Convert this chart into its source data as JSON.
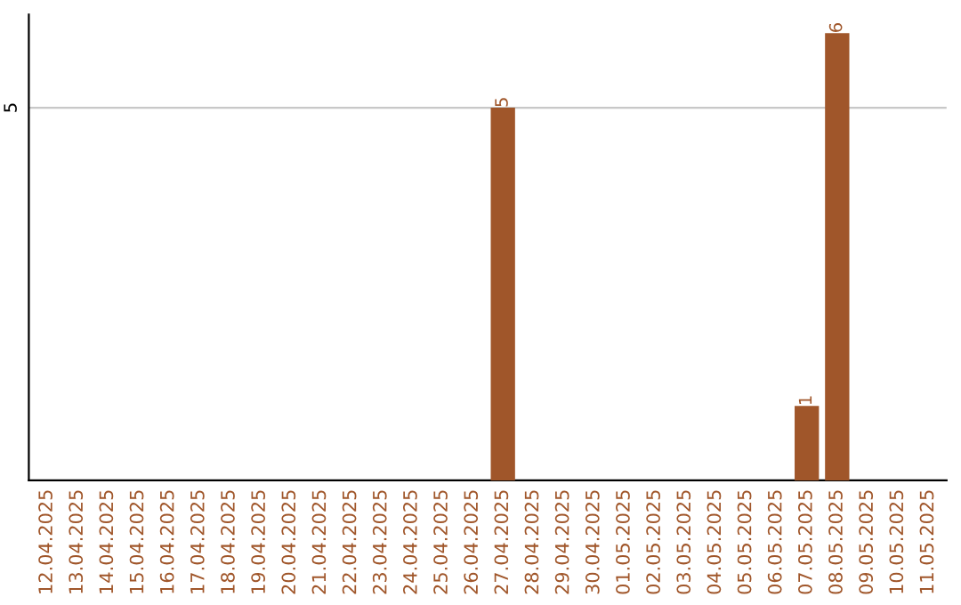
{
  "chart_data": {
    "type": "bar",
    "categories": [
      "12.04.2025",
      "13.04.2025",
      "14.04.2025",
      "15.04.2025",
      "16.04.2025",
      "17.04.2025",
      "18.04.2025",
      "19.04.2025",
      "20.04.2025",
      "21.04.2025",
      "22.04.2025",
      "23.04.2025",
      "24.04.2025",
      "25.04.2025",
      "26.04.2025",
      "27.04.2025",
      "28.04.2025",
      "29.04.2025",
      "30.04.2025",
      "01.05.2025",
      "02.05.2025",
      "03.05.2025",
      "04.05.2025",
      "05.05.2025",
      "06.05.2025",
      "07.05.2025",
      "08.05.2025",
      "09.05.2025",
      "10.05.2025",
      "11.05.2025"
    ],
    "values": [
      null,
      null,
      null,
      null,
      null,
      null,
      null,
      null,
      null,
      null,
      null,
      null,
      null,
      null,
      null,
      5,
      null,
      null,
      null,
      null,
      null,
      null,
      null,
      null,
      null,
      1,
      6,
      null,
      null,
      null
    ],
    "data_labels": true,
    "color": "#a0562a",
    "ylim": [
      0,
      6.25
    ],
    "yticks": [
      5
    ],
    "grid": "y",
    "legend": false
  }
}
